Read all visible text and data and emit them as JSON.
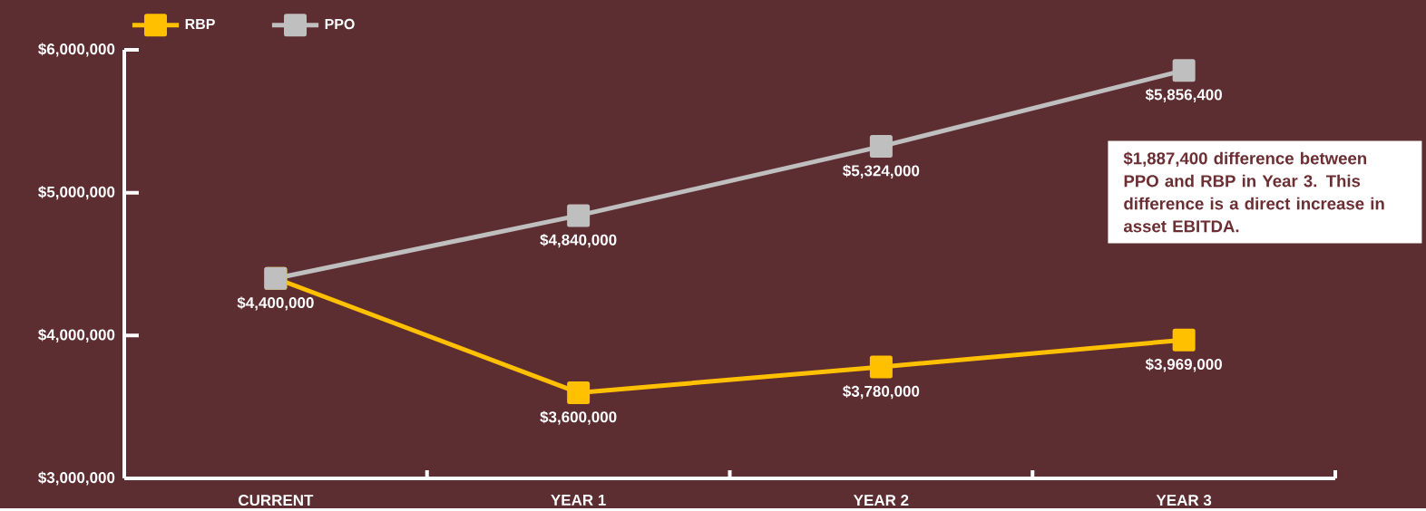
{
  "chart_data": {
    "type": "line",
    "categories": [
      "CURRENT",
      "YEAR 1",
      "YEAR 2",
      "YEAR 3"
    ],
    "series": [
      {
        "name": "RBP",
        "color": "#ffc000",
        "values": [
          4400000,
          3600000,
          3780000,
          3969000
        ],
        "value_labels": [
          "$4,400,000",
          "$3,600,000",
          "$3,780,000",
          "$3,969,000"
        ]
      },
      {
        "name": "PPO",
        "color": "#bfbfbf",
        "values": [
          4400000,
          4840000,
          5324000,
          5856400
        ],
        "value_labels": [
          null,
          "$4,840,000",
          "$5,324,000",
          "$5,856,400"
        ]
      }
    ],
    "ylim": [
      3000000,
      6000000
    ],
    "yticks": [
      {
        "value": 3000000,
        "label": "$3,000,000"
      },
      {
        "value": 4000000,
        "label": "$4,000,000"
      },
      {
        "value": 5000000,
        "label": "$5,000,000"
      },
      {
        "value": 6000000,
        "label": "$6,000,000"
      }
    ],
    "marker": "square",
    "legend": "top left",
    "annotations": [
      "$1,887,400 difference between PPO and RBP in Year 3. This difference is a direct increase in asset EBITDA."
    ]
  }
}
